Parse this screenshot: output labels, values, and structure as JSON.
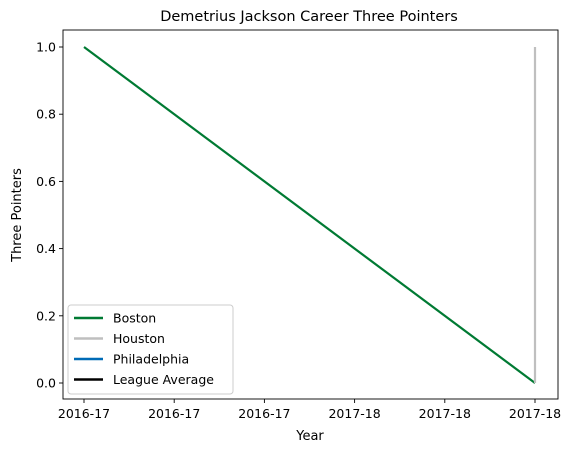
{
  "chart_data": {
    "type": "line",
    "title": "Demetrius Jackson Career Three Pointers",
    "xlabel": "Year",
    "ylabel": "Three Pointers",
    "x_ticks": [
      "2016-17",
      "2016-17",
      "2016-17",
      "2017-18",
      "2017-18",
      "2017-18"
    ],
    "ylim": [
      -0.05,
      1.05
    ],
    "y_ticks": [
      "0.0",
      "0.2",
      "0.4",
      "0.6",
      "0.8",
      "1.0"
    ],
    "grid": false,
    "legend_position": "lower-left",
    "series": [
      {
        "name": "Boston",
        "color": "#007a33",
        "points": [
          [
            0,
            1.0
          ],
          [
            5,
            0.0
          ]
        ]
      },
      {
        "name": "Houston",
        "color": "#bfbfbf",
        "points": [
          [
            5,
            1.0
          ],
          [
            5,
            0.0
          ]
        ]
      },
      {
        "name": "Philadelphia",
        "color": "#006bb6",
        "points": []
      },
      {
        "name": "League Average",
        "color": "#000000",
        "points": []
      }
    ]
  }
}
